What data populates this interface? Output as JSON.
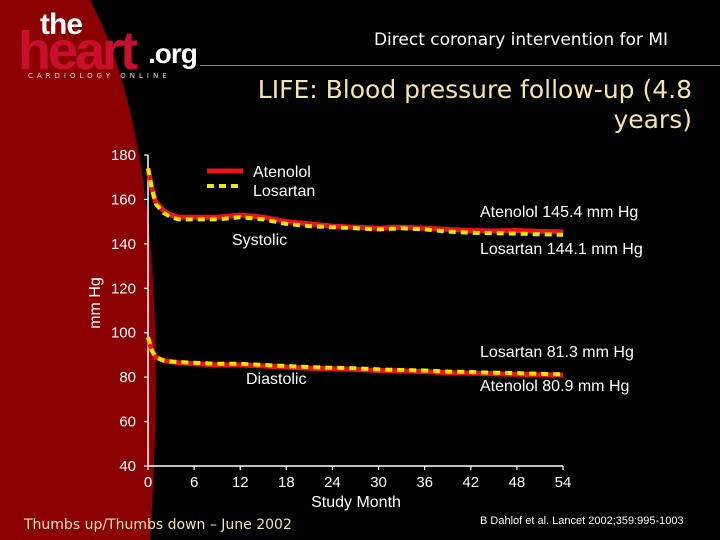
{
  "header": {
    "logo": {
      "the": "the",
      "heart": "heart",
      "org": ".org",
      "tagline": "CARDIOLOGY ONLINE"
    },
    "title": "Direct coronary intervention for MI"
  },
  "slide_title": "LIFE: Blood pressure follow-up (4.8 years)",
  "footer": {
    "left": "Thumbs up/Thumbs down – June 2002",
    "right": "B Dahlof et al. Lancet 2002;359:995-1003"
  },
  "colors": {
    "atenolol": "#e8151a",
    "losartan": "#f5e600",
    "title": "#f5e6a8",
    "swoosh": "#8b0000"
  },
  "chart_data": {
    "type": "line",
    "title": "LIFE: Blood pressure follow-up (4.8 years)",
    "xlabel": "Study Month",
    "ylabel": "mm Hg",
    "xlim": [
      0,
      54
    ],
    "ylim": [
      40,
      180
    ],
    "x_ticks": [
      0,
      6,
      12,
      18,
      24,
      30,
      36,
      42,
      48,
      54
    ],
    "y_ticks": [
      40,
      60,
      80,
      100,
      120,
      140,
      160,
      180
    ],
    "legend": {
      "placement": "top-left",
      "entries": [
        "Atenolol",
        "Losartan"
      ]
    },
    "series": [
      {
        "name": "Atenolol",
        "group": "Systolic",
        "style": "solid",
        "x": [
          0,
          0.5,
          1,
          2,
          3,
          4,
          6,
          9,
          12,
          15,
          18,
          21,
          24,
          27,
          30,
          33,
          36,
          39,
          42,
          45,
          48,
          51,
          54
        ],
        "y": [
          174,
          165,
          159,
          155,
          153,
          152,
          152,
          152,
          153,
          152,
          150,
          149,
          148,
          147.5,
          147,
          147.5,
          147,
          146.5,
          146,
          145.8,
          146,
          145.6,
          145.4
        ]
      },
      {
        "name": "Losartan",
        "group": "Systolic",
        "style": "dashed",
        "x": [
          0,
          0.5,
          1,
          2,
          3,
          4,
          6,
          9,
          12,
          15,
          18,
          21,
          24,
          27,
          30,
          33,
          36,
          39,
          42,
          45,
          48,
          51,
          54
        ],
        "y": [
          174,
          165,
          158,
          154,
          152,
          151,
          151,
          151,
          152,
          151,
          149,
          148,
          147.5,
          147,
          146.5,
          147,
          146.5,
          145.5,
          145,
          144.8,
          144.6,
          144.3,
          144.1
        ]
      },
      {
        "name": "Atenolol",
        "group": "Diastolic",
        "style": "solid",
        "x": [
          0,
          0.5,
          1,
          2,
          3,
          4,
          6,
          9,
          12,
          15,
          18,
          21,
          24,
          27,
          30,
          33,
          36,
          39,
          42,
          45,
          48,
          51,
          54
        ],
        "y": [
          98,
          92,
          89,
          87.5,
          87,
          86.5,
          86,
          85.5,
          85.5,
          85,
          84.5,
          84,
          83.8,
          83.5,
          83,
          82.8,
          82.5,
          82,
          81.8,
          81.5,
          81.3,
          81.1,
          80.9
        ]
      },
      {
        "name": "Losartan",
        "group": "Diastolic",
        "style": "dashed",
        "x": [
          0,
          0.5,
          1,
          2,
          3,
          4,
          6,
          9,
          12,
          15,
          18,
          21,
          24,
          27,
          30,
          33,
          36,
          39,
          42,
          45,
          48,
          51,
          54
        ],
        "y": [
          98,
          92,
          89,
          87.5,
          87,
          86.8,
          86.5,
          86,
          86,
          85.5,
          85,
          84.5,
          84.2,
          84,
          83.5,
          83.2,
          83,
          82.5,
          82.3,
          82,
          81.8,
          81.5,
          81.3
        ]
      }
    ],
    "annotations": {
      "systolic_label": "Systolic",
      "diastolic_label": "Diastolic",
      "atenolol_systolic_final": "Atenolol 145.4 mm Hg",
      "losartan_systolic_final": "Losartan 144.1 mm Hg",
      "losartan_diastolic_final": "Losartan 81.3 mm Hg",
      "atenolol_diastolic_final": "Atenolol 80.9 mm Hg"
    }
  }
}
